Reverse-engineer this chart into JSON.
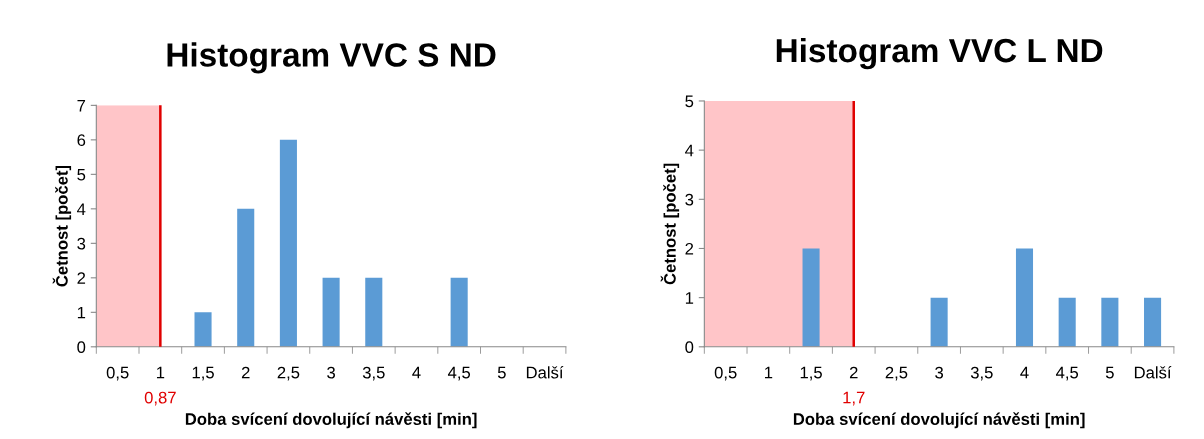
{
  "chart_data": [
    {
      "type": "bar",
      "title": "Histogram VVC S ND",
      "xlabel": "Doba svícení dovolující návěsti [min]",
      "ylabel": "Četnost [počet]",
      "categories": [
        "0,5",
        "1",
        "1,5",
        "2",
        "2,5",
        "3",
        "3,5",
        "4",
        "4,5",
        "5",
        "Další"
      ],
      "values": [
        0,
        0,
        1,
        4,
        6,
        2,
        2,
        0,
        2,
        0,
        0
      ],
      "color": "#5b9bd5",
      "ylim": [
        0,
        7
      ],
      "yticks": [
        0,
        1,
        2,
        3,
        4,
        5,
        6,
        7
      ],
      "grid": false,
      "legend": false,
      "bands": [
        {
          "axis": "x",
          "from": "0,5",
          "to": "1",
          "color": "#ffbfc2"
        }
      ],
      "ref_lines": [
        {
          "axis": "x",
          "value": "1",
          "label": "0,87",
          "color": "#e00000"
        }
      ]
    },
    {
      "type": "bar",
      "title": "Histogram VVC L ND",
      "xlabel": "Doba svícení dovolující návěsti [min]",
      "ylabel": "Četnost [počet]",
      "categories": [
        "0,5",
        "1",
        "1,5",
        "2",
        "2,5",
        "3",
        "3,5",
        "4",
        "4,5",
        "5",
        "Další"
      ],
      "values": [
        0,
        0,
        2,
        0,
        0,
        1,
        0,
        2,
        1,
        1,
        1
      ],
      "color": "#5b9bd5",
      "ylim": [
        0,
        5
      ],
      "yticks": [
        0,
        1,
        2,
        3,
        4,
        5
      ],
      "grid": false,
      "legend": false,
      "bands": [
        {
          "axis": "x",
          "from": "0,5",
          "to": "2",
          "color": "#ffbfc2"
        }
      ],
      "ref_lines": [
        {
          "axis": "x",
          "value": "2",
          "label": "1,7",
          "color": "#e00000"
        }
      ]
    }
  ]
}
